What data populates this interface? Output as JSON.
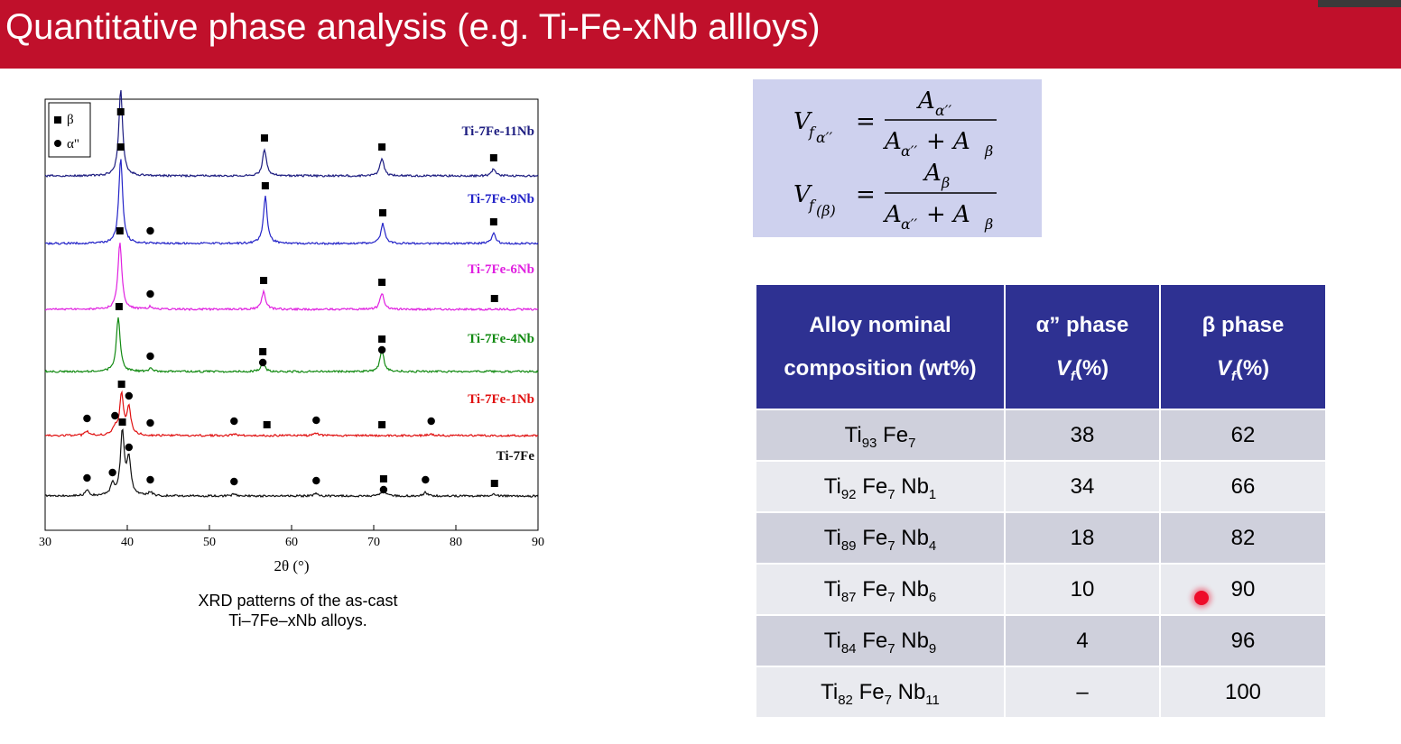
{
  "slide": {
    "title": "Quantitative phase analysis (e.g. Ti-Fe-xNb allloys)",
    "accent_color": "#c0102b",
    "table_header_color": "#2e3192"
  },
  "figure": {
    "caption_line1": "XRD patterns of the as-cast",
    "caption_line2": "Ti–7Fe–xNb alloys."
  },
  "chart_data": {
    "type": "line",
    "xlabel": "2θ (°)",
    "ylabel": "",
    "xlim": [
      30,
      90
    ],
    "x_ticks": [
      "30",
      "40",
      "50",
      "60",
      "70",
      "80",
      "90"
    ],
    "legend": [
      {
        "symbol": "square",
        "label": "β"
      },
      {
        "symbol": "circle",
        "label": "α\""
      }
    ],
    "legend_position": "top-left",
    "grid": false,
    "series": [
      {
        "name": "Ti-7Fe-11Nb",
        "color": "#1c1c80",
        "peaks": [
          [
            39.2,
            95
          ],
          [
            56.7,
            30
          ],
          [
            71.0,
            20
          ],
          [
            84.6,
            8
          ]
        ],
        "beta_markers": [
          39.2,
          56.7,
          71.0,
          84.6
        ],
        "alpha_markers": []
      },
      {
        "name": "Ti-7Fe-9Nb",
        "color": "#2424c8",
        "peaks": [
          [
            39.2,
            95
          ],
          [
            56.8,
            52
          ],
          [
            71.1,
            22
          ],
          [
            84.6,
            12
          ]
        ],
        "beta_markers": [
          39.2,
          56.8,
          71.1,
          84.6
        ],
        "alpha_markers": [
          42.8
        ]
      },
      {
        "name": "Ti-7Fe-6Nb",
        "color": "#e020e0",
        "peaks": [
          [
            39.1,
            75
          ],
          [
            42.8,
            3
          ],
          [
            56.6,
            20
          ],
          [
            71.0,
            18
          ]
        ],
        "beta_markers": [
          39.1,
          56.6,
          71.0,
          84.7
        ],
        "alpha_markers": [
          42.8
        ]
      },
      {
        "name": "Ti-7Fe-4Nb",
        "color": "#128a12",
        "peaks": [
          [
            38.9,
            60
          ],
          [
            42.8,
            3
          ],
          [
            56.5,
            10
          ],
          [
            71.0,
            24
          ]
        ],
        "beta_markers": [
          39.0,
          56.5,
          71.0
        ],
        "alpha_markers": [
          42.8,
          56.5,
          71.0
        ]
      },
      {
        "name": "Ti-7Fe-1Nb",
        "color": "#e01010",
        "peaks": [
          [
            35.1,
            5
          ],
          [
            38.5,
            8
          ],
          [
            39.3,
            45
          ],
          [
            40.2,
            30
          ],
          [
            53.0,
            2
          ],
          [
            63.0,
            3
          ],
          [
            77.0,
            2
          ]
        ],
        "beta_markers": [
          39.3,
          57.0,
          71.0
        ],
        "alpha_markers": [
          35.1,
          38.5,
          40.2,
          42.8,
          53.0,
          63.0,
          77.0
        ]
      },
      {
        "name": "Ti-7Fe",
        "color": "#111111",
        "peaks": [
          [
            35.1,
            6
          ],
          [
            38.2,
            12
          ],
          [
            39.4,
            70
          ],
          [
            40.2,
            40
          ],
          [
            42.8,
            4
          ],
          [
            53.0,
            2
          ],
          [
            63.0,
            3
          ],
          [
            71.2,
            7
          ],
          [
            76.3,
            4
          ],
          [
            84.7,
            2
          ]
        ],
        "beta_markers": [
          39.4,
          71.2,
          84.7
        ],
        "alpha_markers": [
          35.1,
          38.2,
          40.2,
          42.8,
          53.0,
          63.0,
          71.2,
          76.3
        ]
      }
    ]
  },
  "formulas": {
    "eq1_lhs": "V",
    "eq1_lhs_sub": "f",
    "eq1_lhs_subsub": "α′′",
    "eq1_num": "A",
    "eq1_num_sub": "α′′",
    "eq1_den": "A",
    "eq1_den_sub1": "α′′",
    "eq1_den_plus": " + A",
    "eq1_den_sub2": "β",
    "eq2_lhs": "V",
    "eq2_lhs_sub": "f",
    "eq2_lhs_subsub": "(β)",
    "eq2_num": "A",
    "eq2_num_sub": "β",
    "eq2_den": "A",
    "eq2_den_sub1": "α′′",
    "eq2_den_plus": " + A",
    "eq2_den_sub2": "β",
    "equals": "="
  },
  "table": {
    "headers": {
      "col1_line1": "Alloy nominal",
      "col1_line2": "composition (wt%)",
      "col2_line1": "α” phase",
      "col2_line2": "V",
      "col2_sub": "f",
      "col2_unit": "(%)",
      "col3_line1": "β phase",
      "col3_line2": "V",
      "col3_sub": "f",
      "col3_unit": "(%)"
    },
    "rows": [
      {
        "ti": "Ti",
        "ti_sub": "93",
        "fe": "Fe",
        "fe_sub": "7",
        "nb": "",
        "nb_sub": "",
        "alpha": "38",
        "beta": "62"
      },
      {
        "ti": "Ti",
        "ti_sub": "92",
        "fe": "Fe",
        "fe_sub": "7",
        "nb": "Nb",
        "nb_sub": "1",
        "alpha": "34",
        "beta": "66"
      },
      {
        "ti": "Ti",
        "ti_sub": "89",
        "fe": "Fe",
        "fe_sub": "7",
        "nb": "Nb",
        "nb_sub": "4",
        "alpha": "18",
        "beta": "82"
      },
      {
        "ti": "Ti",
        "ti_sub": "87",
        "fe": "Fe",
        "fe_sub": "7",
        "nb": "Nb",
        "nb_sub": "6",
        "alpha": "10",
        "beta": "90"
      },
      {
        "ti": "Ti",
        "ti_sub": "84",
        "fe": "Fe",
        "fe_sub": "7",
        "nb": "Nb",
        "nb_sub": "9",
        "alpha": "4",
        "beta": "96"
      },
      {
        "ti": "Ti",
        "ti_sub": "82",
        "fe": "Fe",
        "fe_sub": "7",
        "nb": "Nb",
        "nb_sub": "11",
        "alpha": "–",
        "beta": "100"
      }
    ]
  }
}
